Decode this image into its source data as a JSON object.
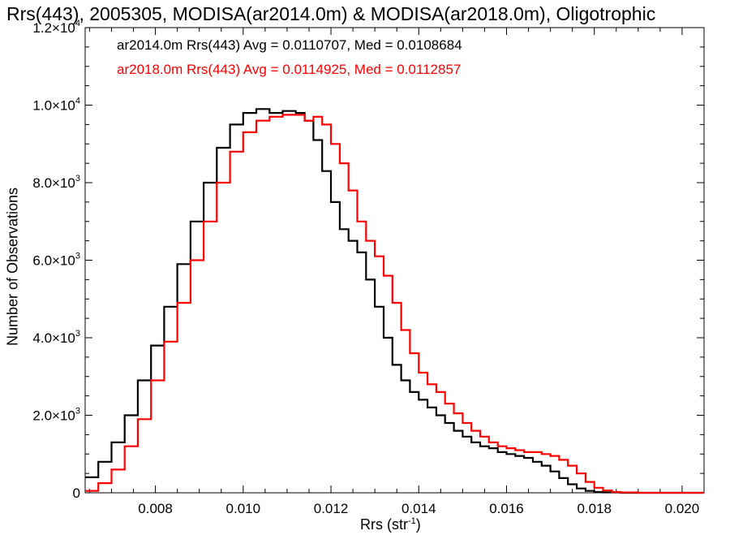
{
  "chart_data": {
    "type": "line",
    "title": "Rrs(443), 2005305, MODISA(ar2014.0m) & MODISA(ar2018.0m), Oligotrophic",
    "xlabel": "Rrs (str",
    "xlabel_sup": "-1",
    "xlabel_end": ")",
    "ylabel": "Number of Observations",
    "xlim": [
      0.0064,
      0.0205
    ],
    "ylim": [
      0,
      12000
    ],
    "x_ticks": [
      0.008,
      0.01,
      0.012,
      0.014,
      0.016,
      0.018,
      0.02
    ],
    "x_tick_labels": [
      "0.008",
      "0.010",
      "0.012",
      "0.014",
      "0.016",
      "0.018",
      "0.020"
    ],
    "y_ticks": [
      0,
      2000,
      4000,
      6000,
      8000,
      10000,
      12000
    ],
    "y_tick_labels": [
      {
        "base": "0",
        "exp": ""
      },
      {
        "base": "2.0×10",
        "exp": "3"
      },
      {
        "base": "4.0×10",
        "exp": "3"
      },
      {
        "base": "6.0×10",
        "exp": "3"
      },
      {
        "base": "8.0×10",
        "exp": "3"
      },
      {
        "base": "1.0×10",
        "exp": "4"
      },
      {
        "base": "1.2×10",
        "exp": "4"
      }
    ],
    "legend": [
      {
        "text": "ar2014.0m Rrs(443) Avg = 0.0110707, Med = 0.0108684",
        "color": "#000000"
      },
      {
        "text": "ar2018.0m Rrs(443) Avg = 0.0114925, Med = 0.0112857",
        "color": "#ff0000"
      }
    ],
    "legend_position": "top-left",
    "series": [
      {
        "name": "ar2014.0m",
        "color": "#000000",
        "step": true,
        "points": [
          [
            0.0064,
            400
          ],
          [
            0.0067,
            800
          ],
          [
            0.007,
            1300
          ],
          [
            0.0073,
            2000
          ],
          [
            0.0076,
            2900
          ],
          [
            0.0079,
            3800
          ],
          [
            0.0082,
            4800
          ],
          [
            0.0085,
            5900
          ],
          [
            0.0088,
            7000
          ],
          [
            0.0091,
            8000
          ],
          [
            0.0094,
            8900
          ],
          [
            0.0097,
            9500
          ],
          [
            0.01,
            9800
          ],
          [
            0.0103,
            9900
          ],
          [
            0.0106,
            9800
          ],
          [
            0.0109,
            9850
          ],
          [
            0.0112,
            9800
          ],
          [
            0.0114,
            9600
          ],
          [
            0.0116,
            9100
          ],
          [
            0.0118,
            8300
          ],
          [
            0.012,
            7500
          ],
          [
            0.0122,
            6800
          ],
          [
            0.0124,
            6500
          ],
          [
            0.0126,
            6200
          ],
          [
            0.0128,
            5500
          ],
          [
            0.013,
            4800
          ],
          [
            0.0132,
            4000
          ],
          [
            0.0134,
            3300
          ],
          [
            0.0136,
            2900
          ],
          [
            0.0138,
            2600
          ],
          [
            0.014,
            2400
          ],
          [
            0.0142,
            2200
          ],
          [
            0.0144,
            2000
          ],
          [
            0.0146,
            1800
          ],
          [
            0.0148,
            1600
          ],
          [
            0.015,
            1450
          ],
          [
            0.0152,
            1300
          ],
          [
            0.0154,
            1200
          ],
          [
            0.0156,
            1150
          ],
          [
            0.0158,
            1050
          ],
          [
            0.016,
            1000
          ],
          [
            0.0162,
            950
          ],
          [
            0.0164,
            900
          ],
          [
            0.0166,
            800
          ],
          [
            0.0168,
            700
          ],
          [
            0.017,
            550
          ],
          [
            0.0172,
            380
          ],
          [
            0.0174,
            220
          ],
          [
            0.0176,
            110
          ],
          [
            0.0178,
            50
          ],
          [
            0.018,
            20
          ],
          [
            0.0182,
            10
          ],
          [
            0.0186,
            0
          ],
          [
            0.0205,
            0
          ]
        ]
      },
      {
        "name": "ar2018.0m",
        "color": "#ff0000",
        "step": true,
        "points": [
          [
            0.0064,
            50
          ],
          [
            0.0067,
            250
          ],
          [
            0.007,
            600
          ],
          [
            0.0073,
            1200
          ],
          [
            0.0076,
            1900
          ],
          [
            0.0079,
            2900
          ],
          [
            0.0082,
            3900
          ],
          [
            0.0085,
            4900
          ],
          [
            0.0088,
            6000
          ],
          [
            0.0091,
            7000
          ],
          [
            0.0094,
            8000
          ],
          [
            0.0097,
            8800
          ],
          [
            0.01,
            9300
          ],
          [
            0.0103,
            9600
          ],
          [
            0.0106,
            9700
          ],
          [
            0.0109,
            9750
          ],
          [
            0.0112,
            9750
          ],
          [
            0.0114,
            9600
          ],
          [
            0.0116,
            9700
          ],
          [
            0.0118,
            9500
          ],
          [
            0.012,
            9000
          ],
          [
            0.0122,
            8500
          ],
          [
            0.0124,
            7800
          ],
          [
            0.0126,
            7000
          ],
          [
            0.0128,
            6500
          ],
          [
            0.013,
            6100
          ],
          [
            0.0132,
            5600
          ],
          [
            0.0134,
            4900
          ],
          [
            0.0136,
            4200
          ],
          [
            0.0138,
            3600
          ],
          [
            0.014,
            3100
          ],
          [
            0.0142,
            2800
          ],
          [
            0.0144,
            2600
          ],
          [
            0.0146,
            2300
          ],
          [
            0.0148,
            2050
          ],
          [
            0.015,
            1800
          ],
          [
            0.0152,
            1600
          ],
          [
            0.0154,
            1450
          ],
          [
            0.0156,
            1300
          ],
          [
            0.0158,
            1200
          ],
          [
            0.016,
            1150
          ],
          [
            0.0162,
            1100
          ],
          [
            0.0164,
            1050
          ],
          [
            0.0166,
            1050
          ],
          [
            0.0168,
            1000
          ],
          [
            0.017,
            950
          ],
          [
            0.0172,
            850
          ],
          [
            0.0174,
            700
          ],
          [
            0.0176,
            500
          ],
          [
            0.0178,
            280
          ],
          [
            0.018,
            130
          ],
          [
            0.0182,
            60
          ],
          [
            0.0184,
            20
          ],
          [
            0.0186,
            10
          ],
          [
            0.019,
            0
          ],
          [
            0.0205,
            0
          ]
        ]
      }
    ],
    "grid": false
  }
}
